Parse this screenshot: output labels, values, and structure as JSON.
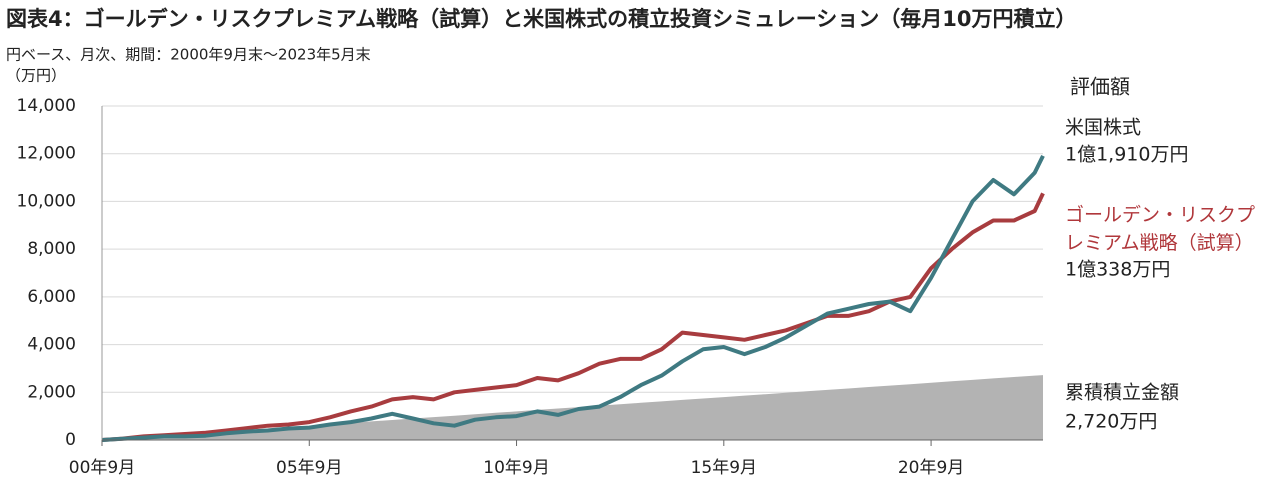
{
  "chart_data": {
    "type": "line",
    "title": "図表4：ゴールデン・リスクプレミアム戦略（試算）と米国株式の積立投資シミュレーション（毎月10万円積立）",
    "subtitle": "円ベース、月次、期間：2000年9月末～2023年5月末",
    "y_label": "（万円）",
    "legend_title": "評価額",
    "x": [
      2000.67,
      2001.17,
      2001.67,
      2002.17,
      2002.67,
      2003.17,
      2003.67,
      2004.17,
      2004.67,
      2005.17,
      2005.67,
      2006.17,
      2006.67,
      2007.17,
      2007.67,
      2008.17,
      2008.67,
      2009.17,
      2009.67,
      2010.17,
      2010.67,
      2011.17,
      2011.67,
      2012.17,
      2012.67,
      2013.17,
      2013.67,
      2014.17,
      2014.67,
      2015.17,
      2015.67,
      2016.17,
      2016.67,
      2017.17,
      2017.67,
      2018.17,
      2018.67,
      2019.17,
      2019.67,
      2020.17,
      2020.67,
      2021.17,
      2021.67,
      2022.17,
      2022.67,
      2023.17,
      2023.37
    ],
    "series": [
      {
        "name": "累積積立金額",
        "color": "#b3b3b3",
        "label_color": "#222222",
        "area": true,
        "end_label": "2,720万円",
        "values": [
          0,
          60,
          120,
          180,
          240,
          300,
          360,
          420,
          480,
          540,
          600,
          660,
          720,
          780,
          840,
          900,
          960,
          1020,
          1080,
          1140,
          1200,
          1260,
          1320,
          1380,
          1440,
          1500,
          1560,
          1620,
          1680,
          1740,
          1800,
          1860,
          1920,
          1980,
          2040,
          2100,
          2160,
          2220,
          2280,
          2340,
          2400,
          2460,
          2520,
          2580,
          2640,
          2700,
          2720
        ]
      },
      {
        "name": "ゴールデン・リスクプレミアム戦略（試算）",
        "color": "#a83c3f",
        "label_color": "#b0373b",
        "end_label": "1億338万円",
        "values": [
          0,
          60,
          150,
          200,
          250,
          300,
          400,
          500,
          600,
          650,
          750,
          950,
          1200,
          1400,
          1700,
          1800,
          1700,
          2000,
          2100,
          2200,
          2300,
          2600,
          2500,
          2800,
          3200,
          3400,
          3400,
          3800,
          4500,
          4400,
          4300,
          4200,
          4400,
          4600,
          4900,
          5200,
          5200,
          5400,
          5800,
          6000,
          7200,
          8000,
          8700,
          9200,
          9200,
          9600,
          10338
        ]
      },
      {
        "name": "米国株式",
        "color": "#3f7a82",
        "label_color": "#3a7f8a",
        "end_label": "1億1,910万円",
        "values": [
          0,
          50,
          100,
          150,
          150,
          180,
          280,
          350,
          400,
          480,
          520,
          650,
          750,
          900,
          1100,
          900,
          700,
          600,
          850,
          950,
          1000,
          1200,
          1050,
          1300,
          1400,
          1800,
          2300,
          2700,
          3300,
          3800,
          3900,
          3600,
          3900,
          4300,
          4800,
          5300,
          5500,
          5700,
          5800,
          5400,
          6800,
          8400,
          10000,
          10900,
          10300,
          11200,
          11910
        ]
      }
    ],
    "xlim": [
      2000.67,
      2023.37
    ],
    "xticks": [
      {
        "value": 2000.67,
        "label": "00年9月"
      },
      {
        "value": 2005.67,
        "label": "05年9月"
      },
      {
        "value": 2010.67,
        "label": "10年9月"
      },
      {
        "value": 2015.67,
        "label": "15年9月"
      },
      {
        "value": 2020.67,
        "label": "20年9月"
      }
    ],
    "ylim": [
      0,
      14000
    ],
    "yticks": [
      0,
      {
        "value": 2000,
        "label": "2,000"
      },
      {
        "value": 4000,
        "label": "4,000"
      },
      {
        "value": 6000,
        "label": "6,000"
      },
      {
        "value": 8000,
        "label": "8,000"
      },
      {
        "value": 10000,
        "label": "10,000"
      },
      {
        "value": 12000,
        "label": "12,000"
      },
      {
        "value": 14000,
        "label": "14,000"
      }
    ],
    "grid": true
  }
}
